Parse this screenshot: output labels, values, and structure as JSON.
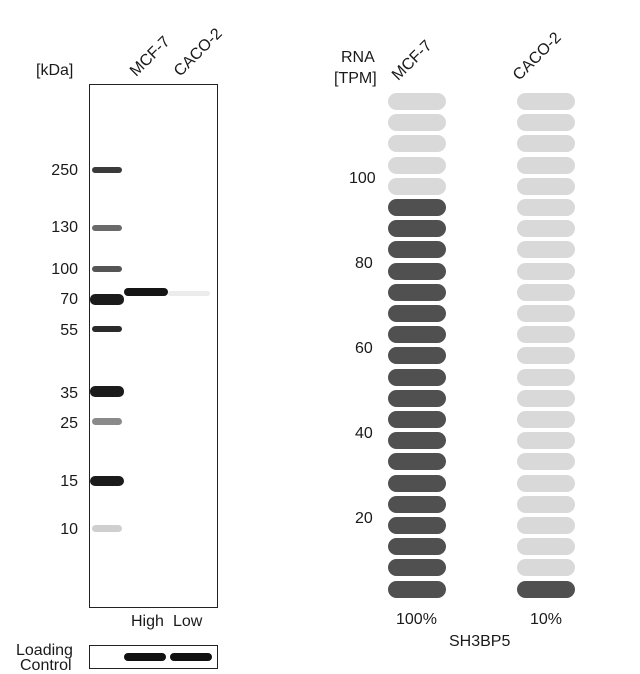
{
  "blot": {
    "kda_label": "[kDa]",
    "lanes": [
      "MCF-7",
      "CACO-2"
    ],
    "markers": [
      "250",
      "130",
      "100",
      "70",
      "55",
      "35",
      "25",
      "15",
      "10"
    ],
    "expression_labels": [
      "High",
      "Low"
    ],
    "loading_control_label": [
      "Loading",
      "Control"
    ]
  },
  "rna": {
    "axis_title": [
      "RNA",
      "[TPM]"
    ],
    "ticks": [
      "100",
      "80",
      "60",
      "40",
      "20"
    ],
    "samples": [
      {
        "name": "MCF-7",
        "percent": "100%",
        "filled_fraction": 0.81
      },
      {
        "name": "CACO-2",
        "percent": "10%",
        "filled_fraction": 0.04
      }
    ],
    "gene": "SH3BP5"
  },
  "colors": {
    "pill_filled": "#505050",
    "pill_empty": "#d9d9d9",
    "band": "#1b1b1b"
  }
}
